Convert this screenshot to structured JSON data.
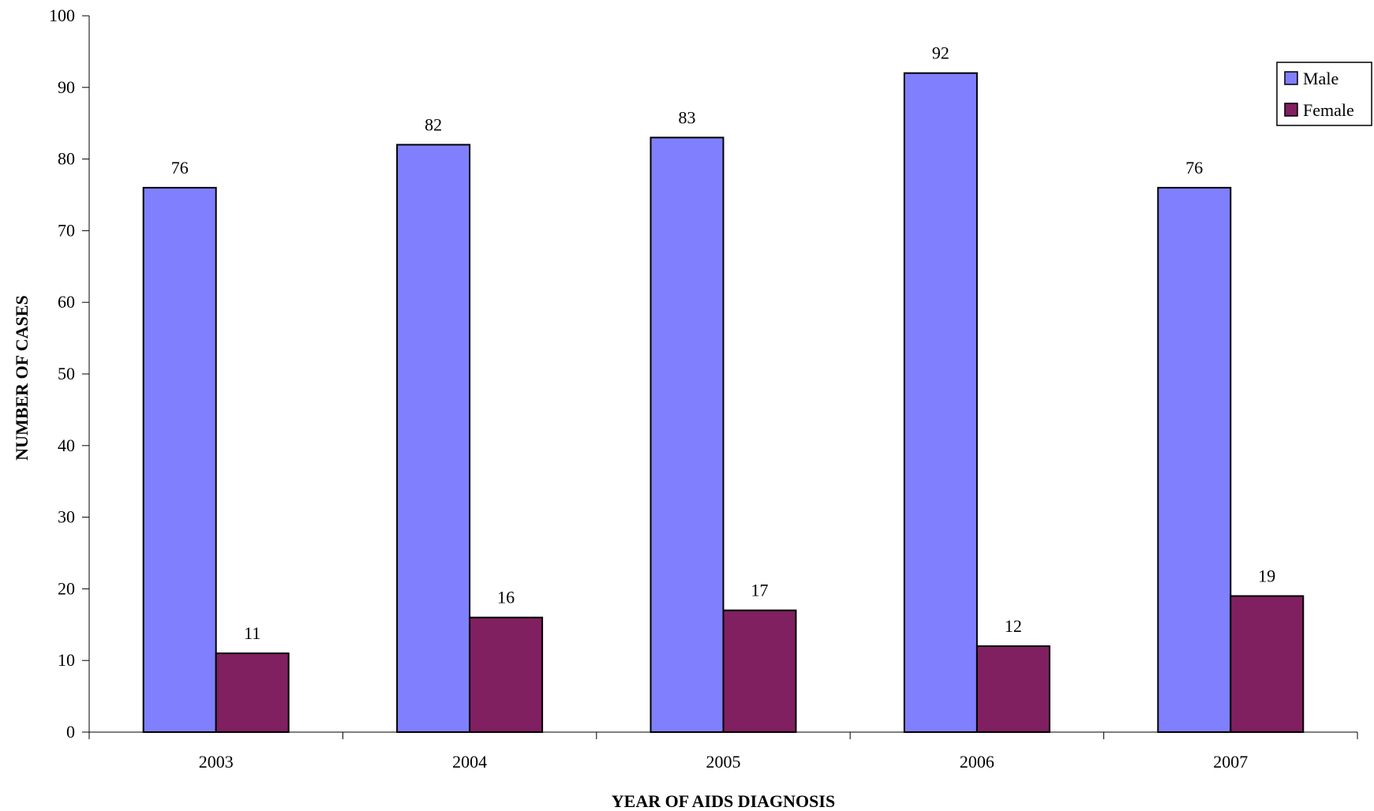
{
  "chart_data": {
    "type": "bar",
    "categories": [
      "2003",
      "2004",
      "2005",
      "2006",
      "2007"
    ],
    "series": [
      {
        "name": "Male",
        "values": [
          76,
          82,
          83,
          92,
          76
        ],
        "color": "#8080ff"
      },
      {
        "name": "Female",
        "values": [
          11,
          16,
          17,
          12,
          19
        ],
        "color": "#802060"
      }
    ],
    "xlabel": "YEAR OF AIDS DIAGNOSIS",
    "ylabel": "NUMBER OF CASES",
    "ylim": [
      0,
      100
    ],
    "yticks": [
      0,
      10,
      20,
      30,
      40,
      50,
      60,
      70,
      80,
      90,
      100
    ],
    "grid": false,
    "legend_position": "top-right",
    "data_labels": true
  }
}
